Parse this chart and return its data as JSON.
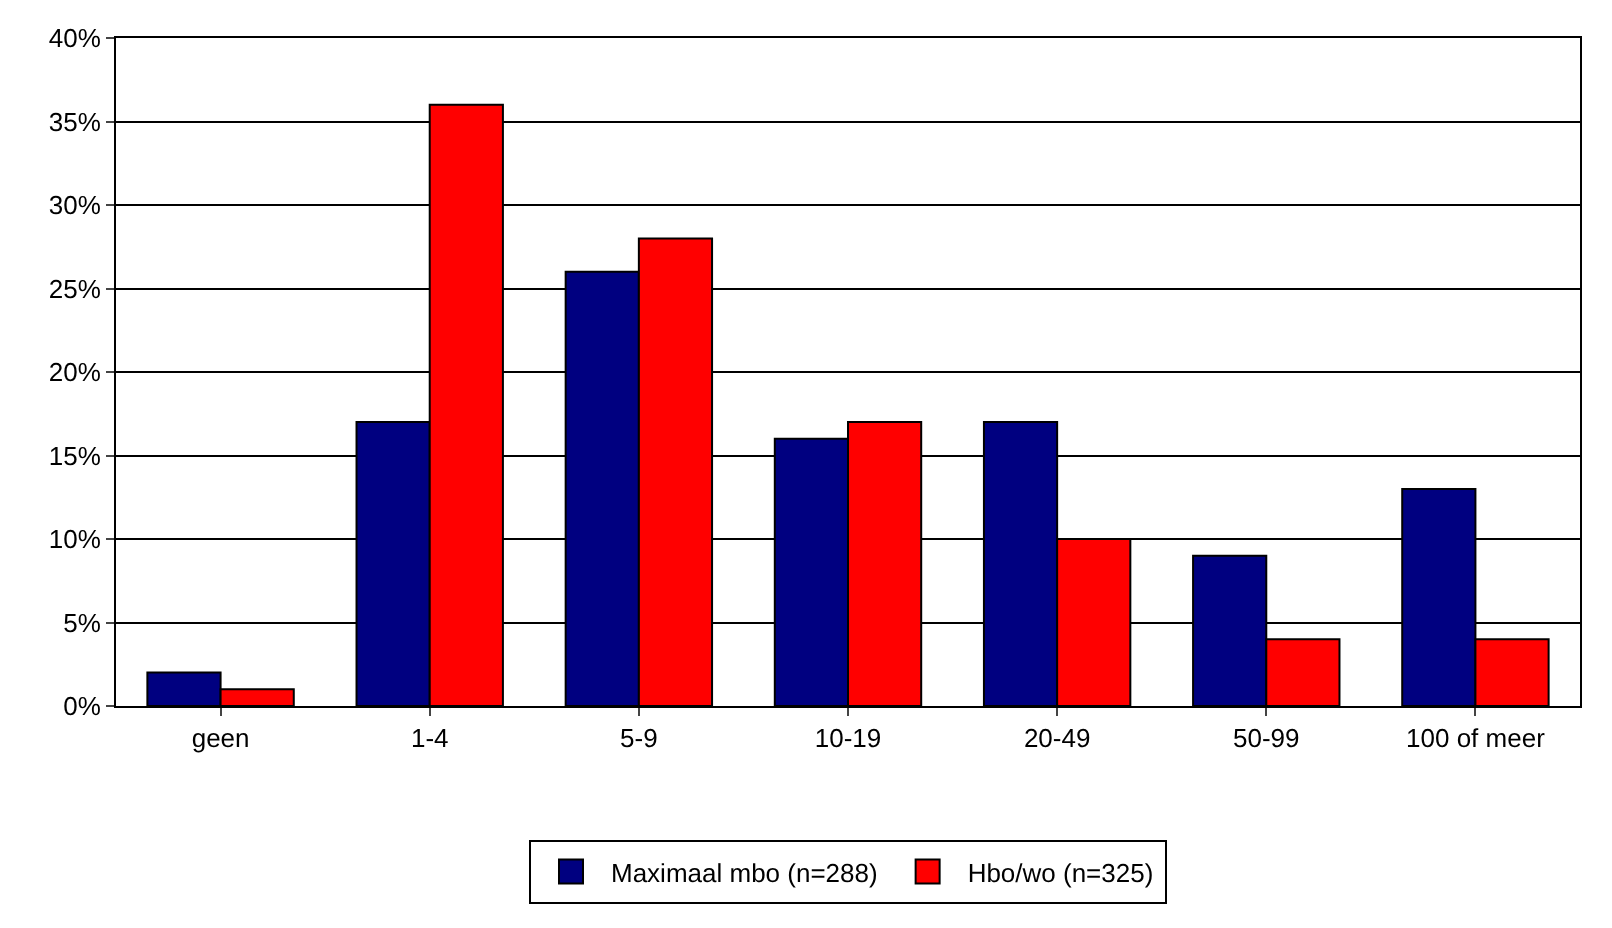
{
  "chart_data": {
    "type": "bar",
    "categories": [
      "geen",
      "1-4",
      "5-9",
      "10-19",
      "20-49",
      "50-99",
      "100 of meer"
    ],
    "series": [
      {
        "name": "Maximaal mbo (n=288)",
        "color": "#000080",
        "values": [
          2,
          17,
          26,
          16,
          17,
          9,
          13
        ]
      },
      {
        "name": "Hbo/wo (n=325)",
        "color": "#ff0000",
        "values": [
          1,
          36,
          28,
          17,
          10,
          4,
          4
        ]
      }
    ],
    "ylim": [
      0,
      40
    ],
    "yticks": [
      {
        "value": 0,
        "label": "0%"
      },
      {
        "value": 5,
        "label": "5%"
      },
      {
        "value": 10,
        "label": "10%"
      },
      {
        "value": 15,
        "label": "15%"
      },
      {
        "value": 20,
        "label": "20%"
      },
      {
        "value": 25,
        "label": "25%"
      },
      {
        "value": 30,
        "label": "30%"
      },
      {
        "value": 35,
        "label": "35%"
      },
      {
        "value": 40,
        "label": "40%"
      }
    ],
    "grid": "y",
    "legend": "bottom"
  }
}
